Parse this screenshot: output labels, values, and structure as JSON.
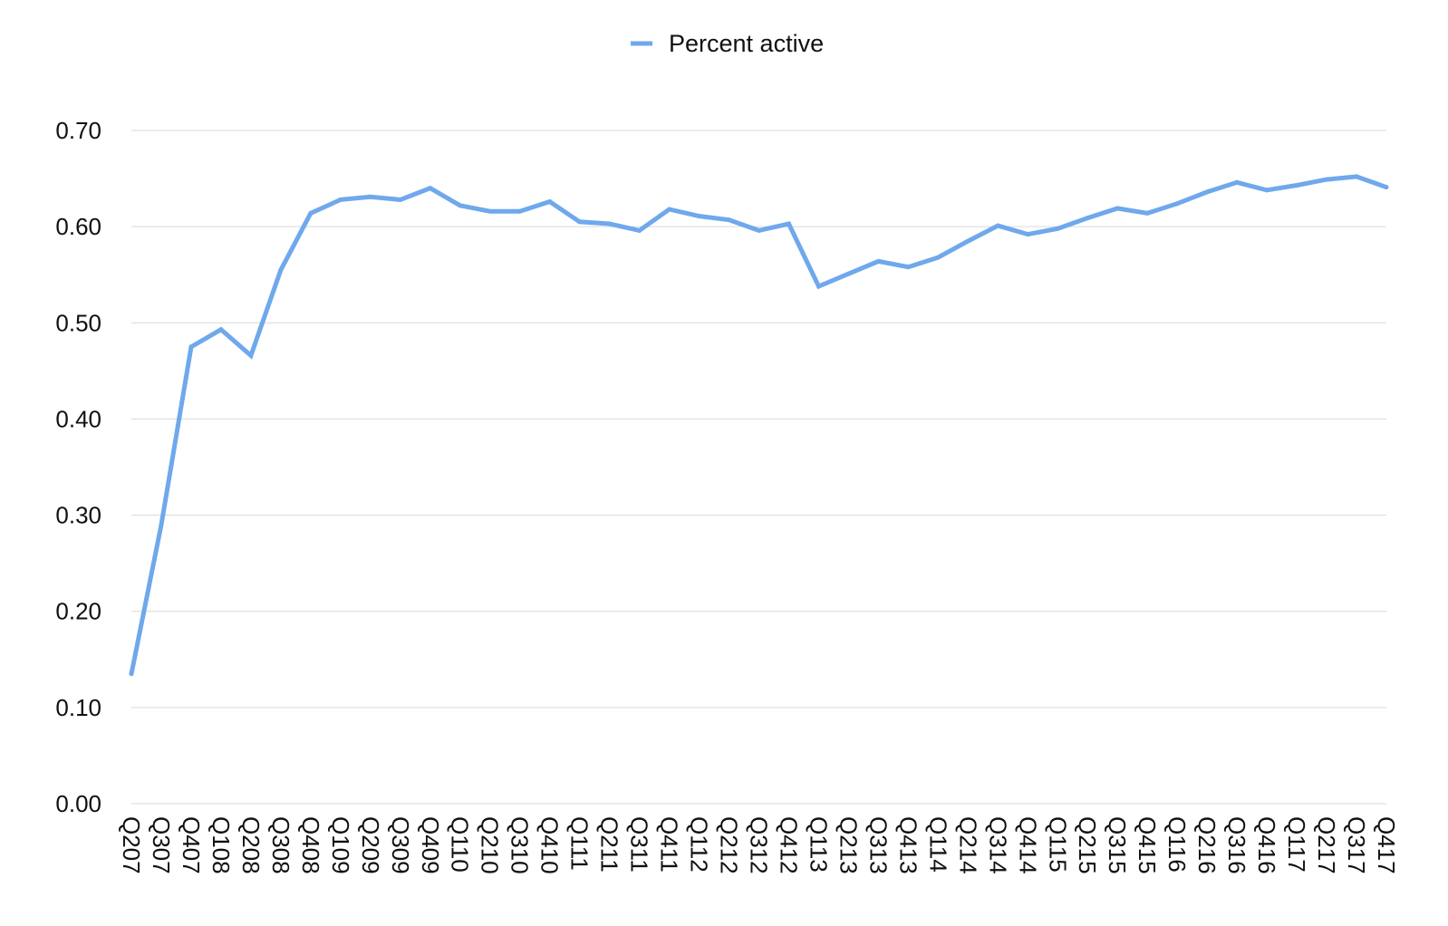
{
  "chart_data": {
    "type": "line",
    "title": "",
    "xlabel": "",
    "ylabel": "",
    "ylim": [
      0,
      0.7
    ],
    "y_ticks": [
      "0.00",
      "0.10",
      "0.20",
      "0.30",
      "0.40",
      "0.50",
      "0.60",
      "0.70"
    ],
    "grid": "horizontal",
    "legend_position": "top-center",
    "categories": [
      "Q207",
      "Q307",
      "Q407",
      "Q108",
      "Q208",
      "Q308",
      "Q408",
      "Q109",
      "Q209",
      "Q309",
      "Q409",
      "Q110",
      "Q210",
      "Q310",
      "Q410",
      "Q111",
      "Q211",
      "Q311",
      "Q411",
      "Q112",
      "Q212",
      "Q312",
      "Q412",
      "Q113",
      "Q213",
      "Q313",
      "Q413",
      "Q114",
      "Q214",
      "Q314",
      "Q414",
      "Q115",
      "Q215",
      "Q315",
      "Q415",
      "Q116",
      "Q216",
      "Q316",
      "Q416",
      "Q117",
      "Q217",
      "Q317",
      "Q417"
    ],
    "series": [
      {
        "name": "Percent active",
        "color": "#6FA8EC",
        "values": [
          0.135,
          0.29,
          0.475,
          0.493,
          0.466,
          0.555,
          0.614,
          0.628,
          0.631,
          0.628,
          0.64,
          0.622,
          0.616,
          0.616,
          0.626,
          0.605,
          0.603,
          0.596,
          0.618,
          0.611,
          0.607,
          0.596,
          0.603,
          0.538,
          0.551,
          0.564,
          0.558,
          0.568,
          0.585,
          0.601,
          0.592,
          0.598,
          0.609,
          0.619,
          0.614,
          0.624,
          0.636,
          0.646,
          0.638,
          0.643,
          0.649,
          0.652,
          0.641
        ]
      }
    ]
  }
}
